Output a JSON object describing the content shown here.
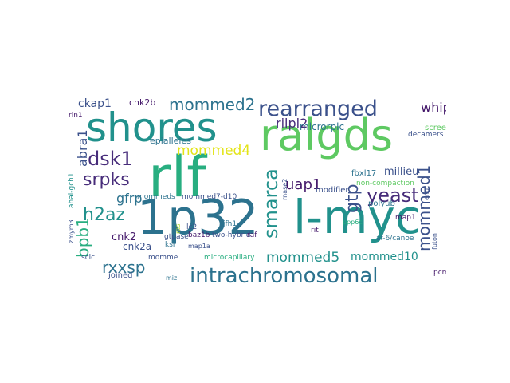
{
  "palette": {
    "dark_purple": "#44186a",
    "purple": "#472c7a",
    "blue": "#3b518b",
    "steel_blue": "#2c728e",
    "teal": "#21918c",
    "sea_green": "#28ae80",
    "green": "#5ec962",
    "light_green": "#addc30",
    "yellow": "#e3e418"
  },
  "words": [
    {
      "text": "shores",
      "color": "#21918c"
    },
    {
      "text": "ralgds",
      "color": "#5ec962"
    },
    {
      "text": "rlf",
      "color": "#28ae80"
    },
    {
      "text": "1p32",
      "color": "#2c728e"
    },
    {
      "text": "l-myc",
      "color": "#21918c"
    },
    {
      "text": "intrachromosomal",
      "color": "#2c728e"
    },
    {
      "text": "rearranged",
      "color": "#3b518b"
    },
    {
      "text": "mommed2",
      "color": "#2c728e"
    },
    {
      "text": "mommed4",
      "color": "#e3e418"
    },
    {
      "text": "dsk1",
      "color": "#472c7a"
    },
    {
      "text": "srpks",
      "color": "#472c7a"
    },
    {
      "text": "h2az",
      "color": "#21918c"
    },
    {
      "text": "rxxsp",
      "color": "#2c728e"
    },
    {
      "text": "yeast",
      "color": "#472c7a"
    },
    {
      "text": "smarca",
      "color": "#21918c"
    },
    {
      "text": "gtp",
      "color": "#3b518b"
    },
    {
      "text": "uap1",
      "color": "#44186a"
    },
    {
      "text": "rilpl2",
      "color": "#472c7a"
    },
    {
      "text": "whip",
      "color": "#44186a"
    },
    {
      "text": "ckap1",
      "color": "#3b518b"
    },
    {
      "text": "cnk2b",
      "color": "#44186a"
    },
    {
      "text": "abra1",
      "color": "#3b518b"
    },
    {
      "text": "gfrp",
      "color": "#2c728e"
    },
    {
      "text": "bpb1",
      "color": "#28ae80"
    },
    {
      "text": "mommed1",
      "color": "#3b518b"
    },
    {
      "text": "mommed5",
      "color": "#21918c"
    },
    {
      "text": "mommed10",
      "color": "#21918c"
    },
    {
      "text": "millieu",
      "color": "#3b518b"
    },
    {
      "text": "microrplc",
      "color": "#2c728e"
    },
    {
      "text": "cnk2a",
      "color": "#3b518b"
    },
    {
      "text": "cnk2",
      "color": "#44186a"
    },
    {
      "text": "epialleles",
      "color": "#2c728e"
    },
    {
      "text": "mommeds",
      "color": "#2c728e"
    },
    {
      "text": "mommed7-d10",
      "color": "#3b518b"
    },
    {
      "text": "fbxl17",
      "color": "#2c728e"
    },
    {
      "text": "screen",
      "color": "#5ec962"
    },
    {
      "text": "non-compaction",
      "color": "#5ec962"
    },
    {
      "text": "polyub",
      "color": "#2c728e"
    },
    {
      "text": "map1",
      "color": "#44186a"
    },
    {
      "text": "modifier",
      "color": "#3b518b"
    },
    {
      "text": "af-6/canoe",
      "color": "#2c728e"
    },
    {
      "text": "pcm1",
      "color": "#44186a"
    },
    {
      "text": "futon",
      "color": "#3b518b"
    },
    {
      "text": "microcapillary",
      "color": "#28ae80"
    },
    {
      "text": "joined",
      "color": "#3b518b"
    },
    {
      "text": "sclc",
      "color": "#3b518b"
    },
    {
      "text": "baz1b",
      "color": "#44186a"
    },
    {
      "text": "two-hybrid",
      "color": "#3b518b"
    },
    {
      "text": "gtpase",
      "color": "#3b518b"
    },
    {
      "text": "ksr",
      "color": "#2c728e"
    },
    {
      "text": "jfh1",
      "color": "#2c728e"
    },
    {
      "text": "lc2",
      "color": "#3b518b"
    },
    {
      "text": "raf",
      "color": "#44186a"
    },
    {
      "text": "rit",
      "color": "#44186a"
    },
    {
      "text": "rnase2",
      "color": "#3b518b"
    },
    {
      "text": "ppp6c",
      "color": "#28ae80"
    },
    {
      "text": "enu",
      "color": "#3b518b"
    },
    {
      "text": "decamers",
      "color": "#3b518b"
    },
    {
      "text": "momme",
      "color": "#3b518b"
    },
    {
      "text": "ahal-gch1",
      "color": "#21918c"
    },
    {
      "text": "zmym3",
      "color": "#3b518b"
    },
    {
      "text": "rin1",
      "color": "#44186a"
    },
    {
      "text": "map1a",
      "color": "#3b518b"
    },
    {
      "text": "miz",
      "color": "#2c728e"
    },
    {
      "text": "ras",
      "color": "#addc30"
    }
  ]
}
